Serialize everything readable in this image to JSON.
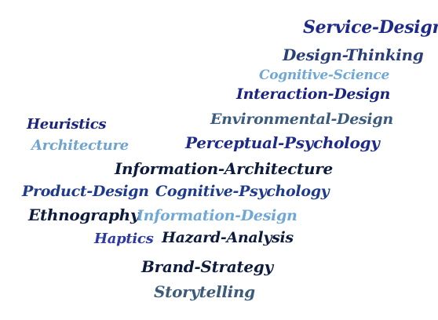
{
  "colors": {
    "navy": "#1a237e",
    "dark_navy": "#0d1b3e",
    "royal": "#2c3a8c",
    "slate": "#3c5a7a",
    "light_blue": "#6fa3d0",
    "mid_blue": "#3b5ba8"
  },
  "words": [
    {
      "text": "Service-Design",
      "color": "#1e2a8a"
    },
    {
      "text": "Design-Thinking",
      "color": "#2a3f7a"
    },
    {
      "text": "Cognitive-Science",
      "color": "#6fa8d6"
    },
    {
      "text": "Interaction-Design",
      "color": "#1a237e"
    },
    {
      "text": "Environmental-Design",
      "color": "#3a5b7d"
    },
    {
      "text": "Heuristics",
      "color": "#1a237e"
    },
    {
      "text": "Perceptual-Psychology",
      "color": "#1e2a8a"
    },
    {
      "text": "Architecture",
      "color": "#6fa3d0"
    },
    {
      "text": "Information-Architecture",
      "color": "#0d1b3e"
    },
    {
      "text": "Product-Design",
      "color": "#1e3a8a"
    },
    {
      "text": "Cognitive-Psychology",
      "color": "#1e3a8a"
    },
    {
      "text": "Ethnography",
      "color": "#0d1b3e"
    },
    {
      "text": "Information-Design",
      "color": "#6fa8d6"
    },
    {
      "text": "Haptics",
      "color": "#2c3aa8"
    },
    {
      "text": "Hazard-Analysis",
      "color": "#0d1b3e"
    },
    {
      "text": "Brand-Strategy",
      "color": "#0d1b3e"
    },
    {
      "text": "Storytelling",
      "color": "#3c5a7a"
    }
  ]
}
